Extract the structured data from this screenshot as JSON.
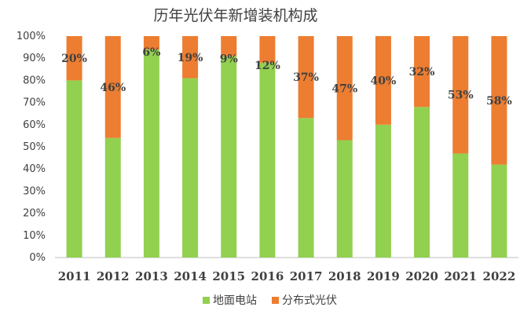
{
  "chart_data": {
    "type": "bar",
    "stacked": true,
    "title": "历年光伏年新增装机构成",
    "categories": [
      "2011",
      "2012",
      "2013",
      "2014",
      "2015",
      "2016",
      "2017",
      "2018",
      "2019",
      "2020",
      "2021",
      "2022"
    ],
    "series": [
      {
        "name": "地面电站",
        "color": "#92d050",
        "values": [
          80,
          54,
          94,
          81,
          91,
          88,
          63,
          53,
          60,
          68,
          47,
          42
        ]
      },
      {
        "name": "分布式光伏",
        "color": "#ed7d31",
        "values": [
          20,
          46,
          6,
          19,
          9,
          12,
          37,
          47,
          40,
          32,
          53,
          58
        ]
      }
    ],
    "data_labels": [
      "20%",
      "46%",
      "6%",
      "19%",
      "9%",
      "12%",
      "37%",
      "47%",
      "40%",
      "32%",
      "53%",
      "58%"
    ],
    "y_ticks": [
      "0%",
      "10%",
      "20%",
      "30%",
      "40%",
      "50%",
      "60%",
      "70%",
      "80%",
      "90%",
      "100%"
    ],
    "ylim": [
      0,
      100
    ],
    "grid": false,
    "legend_position": "bottom"
  }
}
